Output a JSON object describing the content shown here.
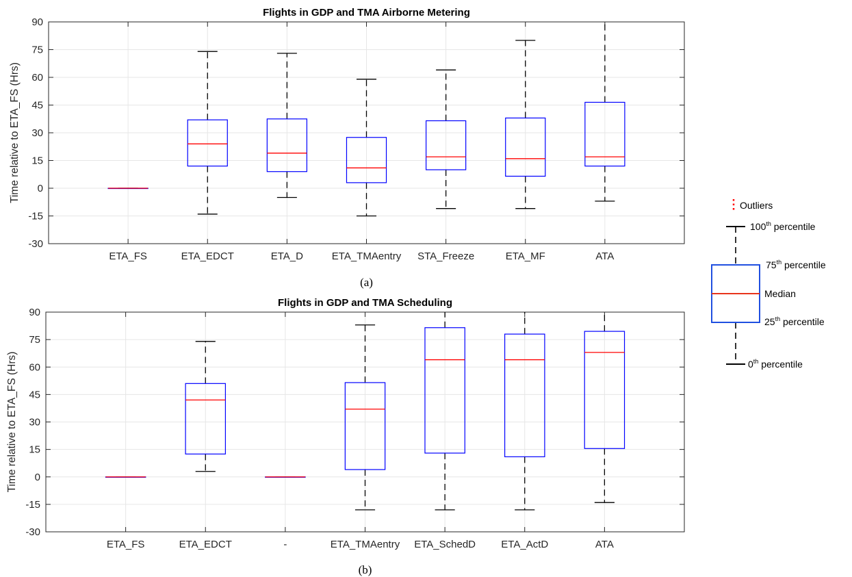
{
  "chart_data": [
    {
      "type": "box",
      "title": "Flights in GDP and TMA Airborne Metering",
      "ylabel": "Time relative to ETA_FS (Hrs)",
      "caption": "(a)",
      "ylim": [
        -30,
        90
      ],
      "yticks": [
        -30,
        -15,
        0,
        15,
        30,
        45,
        60,
        75,
        90
      ],
      "grid": true,
      "categories": [
        "ETA_FS",
        "ETA_EDCT",
        "ETA_D",
        "ETA_TMAentry",
        "STA_Freeze",
        "ETA_MF",
        "ATA"
      ],
      "boxes": [
        {
          "min": 0,
          "q1": 0,
          "median": 0,
          "q3": 0,
          "max": 0
        },
        {
          "min": -14,
          "q1": 12,
          "median": 24,
          "q3": 37,
          "max": 74
        },
        {
          "min": -5,
          "q1": 9,
          "median": 19,
          "q3": 37.5,
          "max": 73
        },
        {
          "min": -15,
          "q1": 3,
          "median": 11,
          "q3": 27.5,
          "max": 59
        },
        {
          "min": -11,
          "q1": 10,
          "median": 17,
          "q3": 36.5,
          "max": 64
        },
        {
          "min": -11,
          "q1": 6.5,
          "median": 16,
          "q3": 38,
          "max": 80
        },
        {
          "min": -7,
          "q1": 12,
          "median": 17,
          "q3": 46.5,
          "max": 90
        }
      ]
    },
    {
      "type": "box",
      "title": "Flights in GDP and TMA Scheduling",
      "ylabel": "Time relative to ETA_FS (Hrs)",
      "caption": "(b)",
      "ylim": [
        -30,
        90
      ],
      "yticks": [
        -30,
        -15,
        0,
        15,
        30,
        45,
        60,
        75,
        90
      ],
      "grid": true,
      "categories": [
        "ETA_FS",
        "ETA_EDCT",
        "-",
        "ETA_TMAentry",
        "ETA_SchedD",
        "ETA_ActD",
        "ATA"
      ],
      "boxes": [
        {
          "min": 0,
          "q1": 0,
          "median": 0,
          "q3": 0,
          "max": 0
        },
        {
          "min": 3,
          "q1": 12.5,
          "median": 42,
          "q3": 51,
          "max": 74
        },
        {
          "min": 0,
          "q1": 0,
          "median": 0,
          "q3": 0,
          "max": 0
        },
        {
          "min": -18,
          "q1": 4,
          "median": 37,
          "q3": 51.5,
          "max": 83
        },
        {
          "min": -18,
          "q1": 13,
          "median": 64,
          "q3": 81.5,
          "max": 90
        },
        {
          "min": -18,
          "q1": 11,
          "median": 64,
          "q3": 78,
          "max": 90
        },
        {
          "min": -14,
          "q1": 15.5,
          "median": 68,
          "q3": 79.5,
          "max": 90
        }
      ]
    }
  ],
  "legend": {
    "outliers": "Outliers",
    "p100": {
      "num": "100",
      "sup": "th",
      "rest": " percentile"
    },
    "p75": {
      "num": "75",
      "sup": "th",
      "rest": " percentile"
    },
    "median": "Median",
    "p25": {
      "num": "25",
      "sup": "th",
      "rest": " percentile"
    },
    "p0": {
      "num": "0",
      "sup": "th",
      "rest": " percentile"
    }
  },
  "colors": {
    "box": "#0000ff",
    "median": "#ff0000",
    "whisker": "#000000",
    "grid": "#e6e6e6",
    "axis": "#262626",
    "legend_box": "#1f4fe0",
    "legend_median": "#e8341c"
  }
}
